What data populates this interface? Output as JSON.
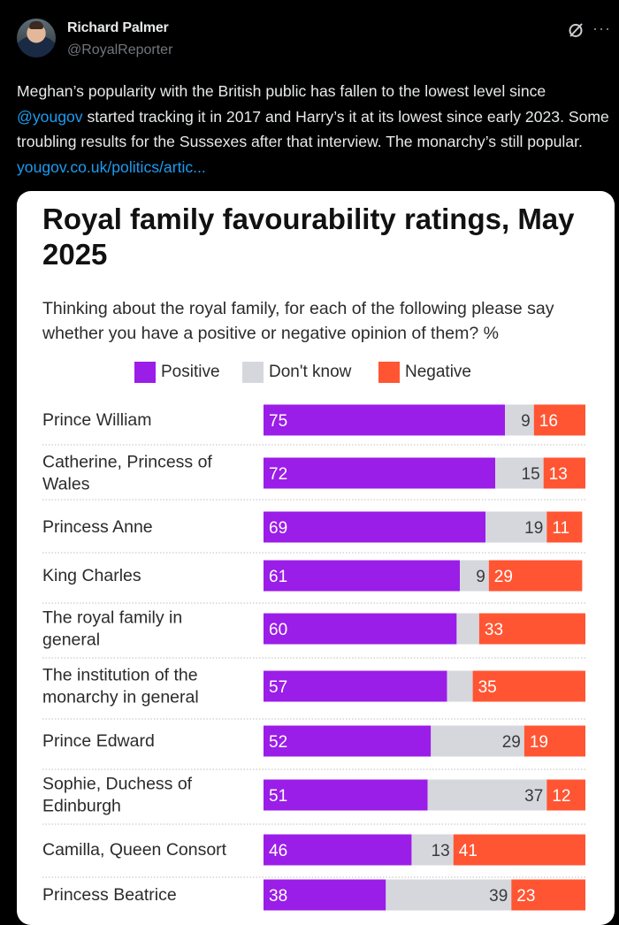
{
  "post": {
    "author_name": "Richard Palmer",
    "author_handle": "@RoyalReporter",
    "more_label": "···",
    "text_parts": {
      "a": "Meghan’s popularity with the British public has fallen to the lowest level since ",
      "mention": "@yougov",
      "b": " started tracking it in 2017 and Harry’s it at its lowest since early 2023. Some troubling results for the Sussexes after that interview. The monarchy’s still popular. ",
      "link": "yougov.co.uk/politics/artic..."
    }
  },
  "colors": {
    "positive": "#9b1de8",
    "dont_know": "#d5d7dd",
    "negative": "#ff5533"
  },
  "chart_data": {
    "type": "bar",
    "stacked": true,
    "orientation": "horizontal",
    "title": "Royal family favourability ratings, May 2025",
    "subtitle": "Thinking about the royal family, for each of the following please say whether you have a positive or negative opinion of them? %",
    "legend_position": "top",
    "xlim": [
      0,
      100
    ],
    "categories": [
      "Prince William",
      "Catherine, Princess of Wales",
      "Princess Anne",
      "King Charles",
      "The royal family in general",
      "The institution of the monarchy in general",
      "Prince Edward",
      "Sophie, Duchess of Edinburgh",
      "Camilla, Queen Consort",
      "Princess Beatrice"
    ],
    "label_lines": [
      [
        "Prince William"
      ],
      [
        "Catherine, Princess of",
        "Wales"
      ],
      [
        "Princess Anne"
      ],
      [
        "King Charles"
      ],
      [
        "The royal family in",
        "general"
      ],
      [
        "The institution of the",
        "monarchy in general"
      ],
      [
        "Prince Edward"
      ],
      [
        "Sophie, Duchess of",
        "Edinburgh"
      ],
      [
        "Camilla, Queen Consort"
      ],
      [
        "Princess Beatrice"
      ]
    ],
    "series": [
      {
        "name": "Positive",
        "values": [
          75,
          72,
          69,
          61,
          60,
          57,
          52,
          51,
          46,
          38
        ]
      },
      {
        "name": "Don't know",
        "values": [
          9,
          15,
          19,
          9,
          7,
          8,
          29,
          37,
          13,
          39
        ]
      },
      {
        "name": "Negative",
        "values": [
          16,
          13,
          11,
          29,
          33,
          35,
          19,
          12,
          41,
          23
        ]
      }
    ],
    "value_labels_shown": [
      [
        true,
        true,
        true
      ],
      [
        true,
        true,
        true
      ],
      [
        true,
        true,
        true
      ],
      [
        true,
        true,
        true
      ],
      [
        true,
        false,
        true
      ],
      [
        true,
        false,
        true
      ],
      [
        true,
        true,
        true
      ],
      [
        true,
        true,
        true
      ],
      [
        true,
        true,
        true
      ],
      [
        true,
        true,
        true
      ]
    ]
  }
}
